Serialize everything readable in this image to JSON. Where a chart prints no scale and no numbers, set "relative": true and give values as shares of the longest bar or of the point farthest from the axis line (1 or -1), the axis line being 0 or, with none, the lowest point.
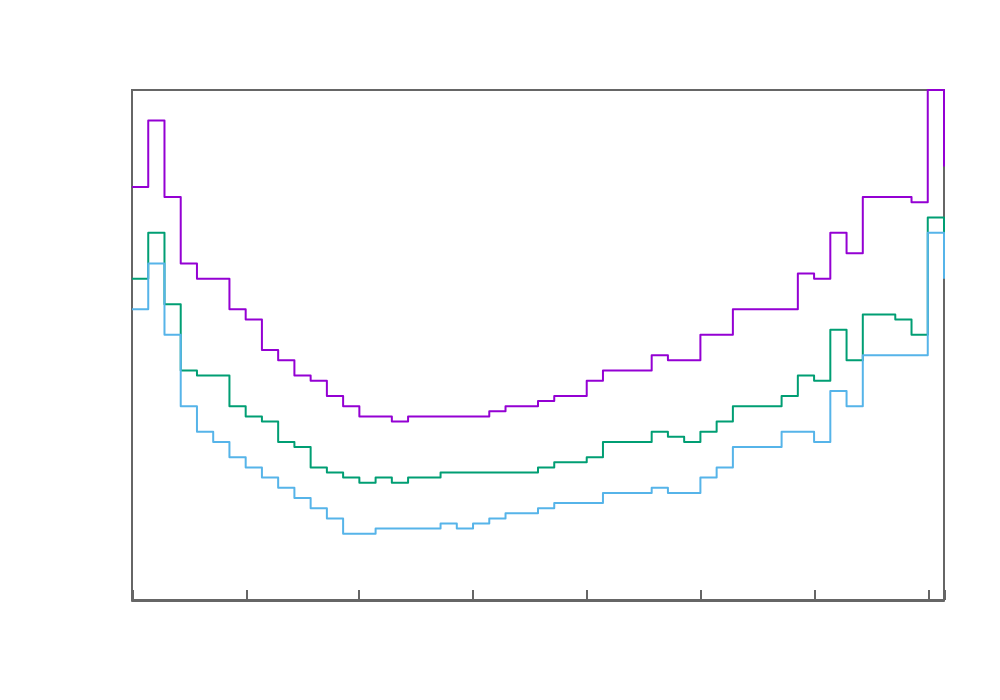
{
  "chart_data": {
    "type": "step",
    "relative": true,
    "grid": false,
    "categories": [
      null,
      null,
      null,
      null,
      null,
      null,
      null,
      null,
      null,
      null,
      null,
      null,
      null,
      null,
      null,
      null,
      null,
      null,
      null,
      null,
      null,
      null,
      null,
      null,
      null,
      null,
      null,
      null,
      null,
      null,
      null,
      null,
      null,
      null,
      null,
      null,
      null,
      null,
      null,
      null,
      null,
      null,
      null,
      null,
      null,
      null,
      null,
      null,
      null,
      null,
      null
    ],
    "series": [
      {
        "color": "#9400d3",
        "values": [
          0.81,
          0.94,
          0.79,
          0.66,
          0.63,
          0.63,
          0.57,
          0.55,
          0.49,
          0.47,
          0.44,
          0.43,
          0.4,
          0.38,
          0.36,
          0.36,
          0.35,
          0.36,
          0.36,
          0.36,
          0.36,
          0.36,
          0.37,
          0.38,
          0.38,
          0.39,
          0.4,
          0.4,
          0.43,
          0.45,
          0.45,
          0.45,
          0.48,
          0.47,
          0.47,
          0.52,
          0.52,
          0.57,
          0.57,
          0.57,
          0.57,
          0.64,
          0.63,
          0.72,
          0.68,
          0.79,
          0.79,
          0.79,
          0.78,
          1,
          0.85
        ]
      },
      {
        "color": "#009e73",
        "values": [
          0.63,
          0.72,
          0.58,
          0.45,
          0.44,
          0.44,
          0.38,
          0.36,
          0.35,
          0.31,
          0.3,
          0.26,
          0.25,
          0.24,
          0.23,
          0.24,
          0.23,
          0.24,
          0.24,
          0.25,
          0.25,
          0.25,
          0.25,
          0.25,
          0.25,
          0.26,
          0.27,
          0.27,
          0.28,
          0.31,
          0.31,
          0.31,
          0.33,
          0.32,
          0.31,
          0.33,
          0.35,
          0.38,
          0.38,
          0.38,
          0.4,
          0.44,
          0.43,
          0.53,
          0.47,
          0.56,
          0.56,
          0.55,
          0.52,
          0.75,
          0.68
        ]
      },
      {
        "color": "#56b4e9",
        "values": [
          0.57,
          0.66,
          0.52,
          0.38,
          0.33,
          0.31,
          0.28,
          0.26,
          0.24,
          0.22,
          0.2,
          0.18,
          0.16,
          0.13,
          0.13,
          0.14,
          0.14,
          0.14,
          0.14,
          0.15,
          0.14,
          0.15,
          0.16,
          0.17,
          0.17,
          0.18,
          0.19,
          0.19,
          0.19,
          0.21,
          0.21,
          0.21,
          0.22,
          0.21,
          0.21,
          0.24,
          0.26,
          0.3,
          0.3,
          0.3,
          0.33,
          0.33,
          0.31,
          0.41,
          0.38,
          0.48,
          0.48,
          0.48,
          0.48,
          0.72,
          0.63
        ]
      }
    ]
  }
}
